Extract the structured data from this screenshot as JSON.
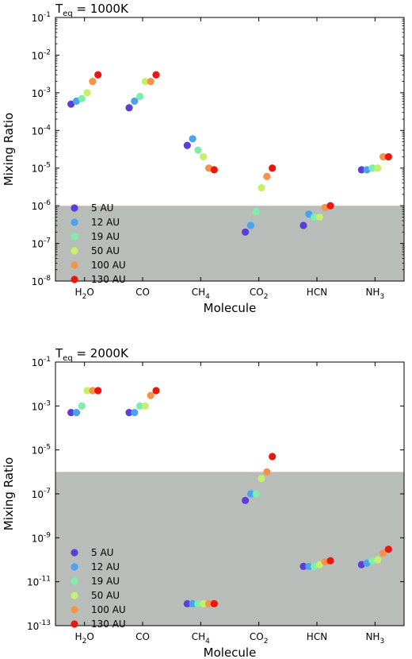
{
  "chart_data": [
    {
      "type": "scatter",
      "title": "T_eq = 1000K",
      "title_main": "T",
      "title_sub": "eq",
      "title_rest": " = 1000K",
      "xlabel": "Molecule",
      "ylabel": "Mixing Ratio",
      "yscale": "log",
      "ylim": [
        1e-08,
        0.1
      ],
      "y_tick_exponents": [
        -8,
        -7,
        -6,
        -5,
        -4,
        -3,
        -2,
        -1
      ],
      "shaded_below": 1e-06,
      "shade_color": "#b9bdba",
      "legend_position": "lower-left",
      "categories": [
        {
          "main": "H",
          "sub": "2",
          "tail": "O"
        },
        {
          "main": "CO",
          "sub": "",
          "tail": ""
        },
        {
          "main": "CH",
          "sub": "4",
          "tail": ""
        },
        {
          "main": "CO",
          "sub": "2",
          "tail": ""
        },
        {
          "main": "HCN",
          "sub": "",
          "tail": ""
        },
        {
          "main": "NH",
          "sub": "3",
          "tail": ""
        }
      ],
      "series": [
        {
          "name": "5 AU",
          "color": "#5a3fd6",
          "values": [
            0.0005,
            0.0004,
            4e-05,
            2e-07,
            3e-07,
            9e-06
          ]
        },
        {
          "name": "12 AU",
          "color": "#4aa3ef",
          "values": [
            0.0006,
            0.0006,
            6e-05,
            3e-07,
            6e-07,
            9e-06
          ]
        },
        {
          "name": "19 AU",
          "color": "#7cf0a8",
          "values": [
            0.0007,
            0.0008,
            3e-05,
            7e-07,
            5e-07,
            1e-05
          ]
        },
        {
          "name": "50 AU",
          "color": "#c6ef6a",
          "values": [
            0.001,
            0.002,
            2e-05,
            3e-06,
            5e-07,
            1e-05
          ]
        },
        {
          "name": "100 AU",
          "color": "#f7924a",
          "values": [
            0.002,
            0.002,
            1e-05,
            6e-06,
            9e-07,
            2e-05
          ]
        },
        {
          "name": "130 AU",
          "color": "#e8180f",
          "values": [
            0.003,
            0.003,
            9e-06,
            1e-05,
            1e-06,
            2e-05
          ]
        }
      ]
    },
    {
      "type": "scatter",
      "title": "T_eq = 2000K",
      "title_main": "T",
      "title_sub": "eq",
      "title_rest": " = 2000K",
      "xlabel": "Molecule",
      "ylabel": "Mixing Ratio",
      "yscale": "log",
      "ylim": [
        1e-13,
        0.1
      ],
      "y_tick_exponents": [
        -13,
        -11,
        -9,
        -7,
        -5,
        -3,
        -1
      ],
      "shaded_below": 1e-06,
      "shade_color": "#b9bdba",
      "legend_position": "lower-left",
      "categories": [
        {
          "main": "H",
          "sub": "2",
          "tail": "O"
        },
        {
          "main": "CO",
          "sub": "",
          "tail": ""
        },
        {
          "main": "CH",
          "sub": "4",
          "tail": ""
        },
        {
          "main": "CO",
          "sub": "2",
          "tail": ""
        },
        {
          "main": "HCN",
          "sub": "",
          "tail": ""
        },
        {
          "main": "NH",
          "sub": "3",
          "tail": ""
        }
      ],
      "series": [
        {
          "name": "5 AU",
          "color": "#5a3fd6",
          "values": [
            0.0005,
            0.0005,
            1e-12,
            5e-08,
            5e-11,
            6e-11
          ]
        },
        {
          "name": "12 AU",
          "color": "#4aa3ef",
          "values": [
            0.0005,
            0.0005,
            1e-12,
            1e-07,
            5e-11,
            7e-11
          ]
        },
        {
          "name": "19 AU",
          "color": "#7cf0a8",
          "values": [
            0.001,
            0.001,
            1e-12,
            1e-07,
            5e-11,
            9e-11
          ]
        },
        {
          "name": "50 AU",
          "color": "#c6ef6a",
          "values": [
            0.005,
            0.001,
            1e-12,
            5e-07,
            6e-11,
            1e-10
          ]
        },
        {
          "name": "100 AU",
          "color": "#f7924a",
          "values": [
            0.005,
            0.003,
            1e-12,
            1e-06,
            8e-11,
            2e-10
          ]
        },
        {
          "name": "130 AU",
          "color": "#e8180f",
          "values": [
            0.005,
            0.005,
            1e-12,
            5e-06,
            9e-11,
            3e-10
          ]
        }
      ]
    }
  ]
}
